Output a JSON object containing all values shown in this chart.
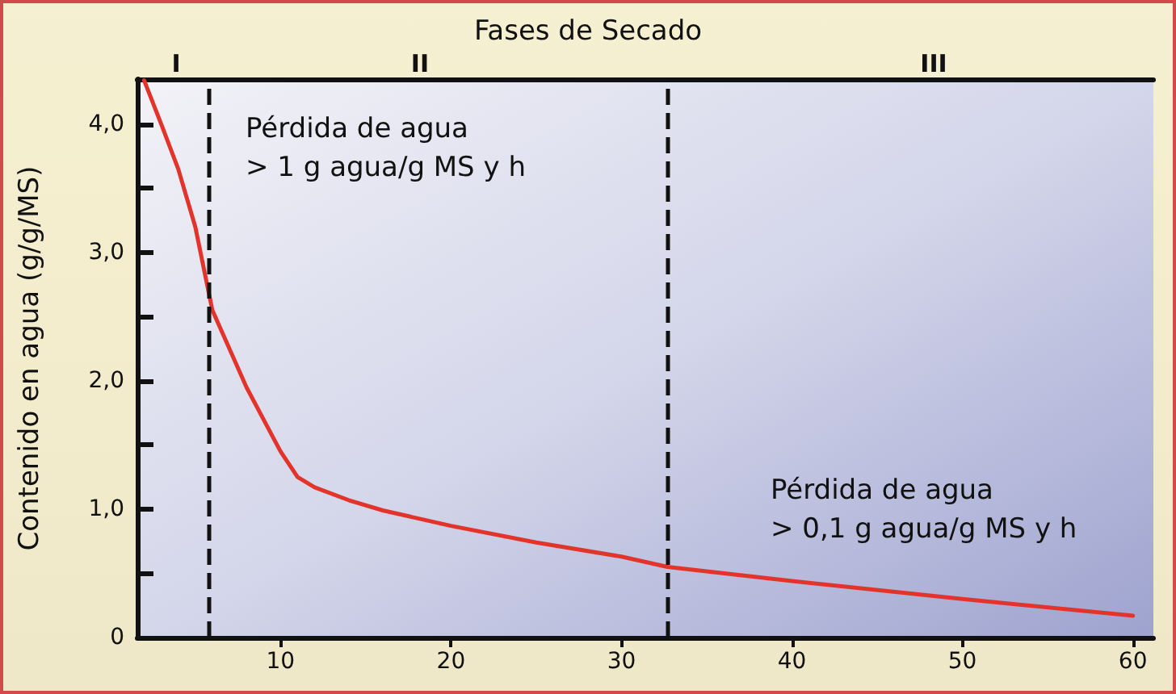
{
  "chart_data": {
    "type": "line",
    "title": "Fases de Secado",
    "ylabel": "Contenido en agua (g/g/MS)",
    "annotations": [
      "Pérdida de agua\n> 1 g agua/g MS y h",
      "Pérdida de agua\n> 0,1 g agua/g MS y h",
      "I",
      "II",
      "III"
    ],
    "x": [
      2,
      3,
      4,
      5,
      6,
      7,
      8,
      9,
      10,
      11,
      12,
      14,
      16,
      20,
      25,
      30,
      32.7,
      40,
      50,
      60
    ],
    "series": [
      {
        "color": "#e3342c",
        "values": [
          4.34,
          4.0,
          3.65,
          3.2,
          2.55,
          2.25,
          1.95,
          1.7,
          1.45,
          1.25,
          1.17,
          1.07,
          0.99,
          0.87,
          0.74,
          0.63,
          0.55,
          0.44,
          0.3,
          0.17
        ]
      }
    ],
    "xlim": [
      1.6,
      61.2
    ],
    "xticks": [
      10,
      20,
      30,
      40,
      50,
      60
    ],
    "ylim": [
      0,
      4.35
    ],
    "yticks": [
      {
        "value": 0,
        "label": "0"
      },
      {
        "value": 0.5,
        "label": null
      },
      {
        "value": 1,
        "label": "1,0"
      },
      {
        "value": 1.5,
        "label": null
      },
      {
        "value": 2,
        "label": "2,0"
      },
      {
        "value": 2.5,
        "label": null
      },
      {
        "value": 3,
        "label": "3,0"
      },
      {
        "value": 3.5,
        "label": null
      },
      {
        "value": 4,
        "label": "4,0"
      }
    ],
    "ref_lines": [
      {
        "axis": "x",
        "value": 5.8,
        "color": "#111111",
        "line_style": "dashed"
      },
      {
        "axis": "x",
        "value": 32.7,
        "color": "#111111",
        "line_style": "dashed"
      }
    ],
    "grid": false,
    "marker": "none",
    "line_style": "solid"
  }
}
